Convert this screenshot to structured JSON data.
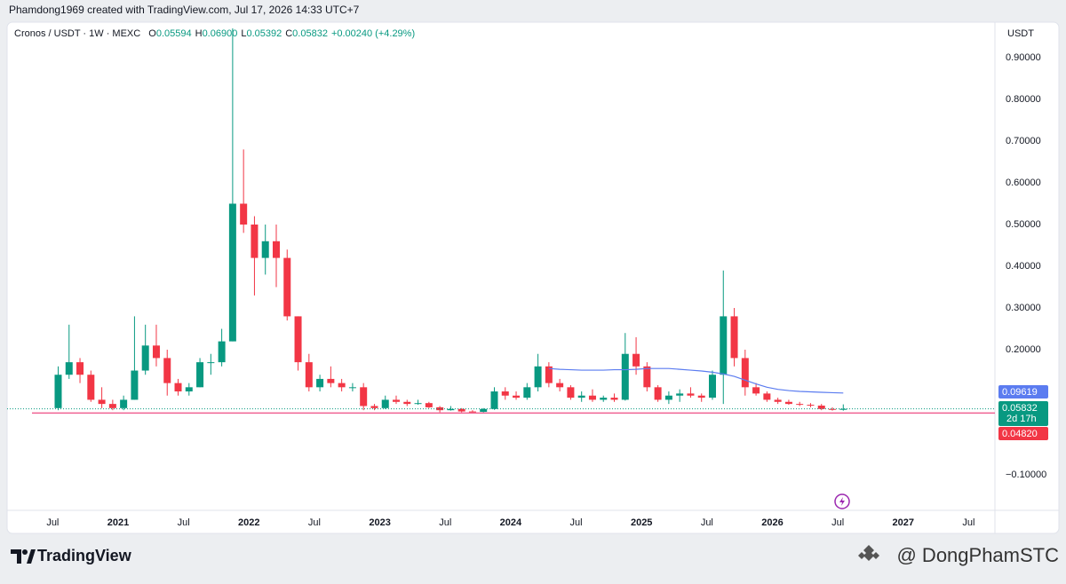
{
  "header": {
    "credit": "Phamdong1969 created with TradingView.com, Jul 17, 2026 14:33 UTC+7"
  },
  "footer": {
    "brand": "TradingView",
    "author": "@ DongPhamSTC"
  },
  "chart_data": {
    "type": "candlestick",
    "symbol": "Cronos / USDT · 1W · MEXC",
    "ohlc_legend": [
      {
        "key": "O",
        "value": "0.05594"
      },
      {
        "key": "H",
        "value": "0.06900"
      },
      {
        "key": "L",
        "value": "0.05392"
      },
      {
        "key": "C",
        "value": "0.05832"
      }
    ],
    "change": "+0.00240 (+4.29%)",
    "currency": "USDT",
    "up_color": "#089981",
    "down_color": "#f23645",
    "candles": {
      "x": [
        "2020-07",
        "2020-08",
        "2020-09",
        "2020-10",
        "2020-11",
        "2020-12",
        "2021-01",
        "2021-02",
        "2021-03",
        "2021-04",
        "2021-05",
        "2021-06",
        "2021-07",
        "2021-08",
        "2021-09",
        "2021-10",
        "2021-11",
        "2021-12",
        "2022-01",
        "2022-02",
        "2022-03",
        "2022-04",
        "2022-05",
        "2022-06",
        "2022-07",
        "2022-08",
        "2022-09",
        "2022-10",
        "2022-11",
        "2022-12",
        "2023-01",
        "2023-02",
        "2023-03",
        "2023-04",
        "2023-05",
        "2023-06",
        "2023-07",
        "2023-08",
        "2023-09",
        "2023-10",
        "2023-11",
        "2023-12",
        "2024-01",
        "2024-02",
        "2024-03",
        "2024-04",
        "2024-05",
        "2024-06",
        "2024-07",
        "2024-08",
        "2024-09",
        "2024-10",
        "2024-11",
        "2024-12",
        "2025-01",
        "2025-02",
        "2025-03",
        "2025-04",
        "2025-05",
        "2025-06",
        "2025-07",
        "2025-08",
        "2025-09",
        "2025-10",
        "2025-11",
        "2025-12",
        "2026-01",
        "2026-02",
        "2026-03",
        "2026-04",
        "2026-05",
        "2026-06",
        "2026-07"
      ],
      "open": [
        0.06,
        0.14,
        0.17,
        0.14,
        0.08,
        0.07,
        0.06,
        0.08,
        0.15,
        0.21,
        0.18,
        0.12,
        0.1,
        0.11,
        0.17,
        0.17,
        0.22,
        0.55,
        0.5,
        0.42,
        0.46,
        0.42,
        0.28,
        0.17,
        0.11,
        0.13,
        0.12,
        0.11,
        0.11,
        0.065,
        0.06,
        0.08,
        0.075,
        0.07,
        0.072,
        0.062,
        0.055,
        0.058,
        0.052,
        0.051,
        0.058,
        0.1,
        0.09,
        0.085,
        0.11,
        0.16,
        0.12,
        0.11,
        0.085,
        0.09,
        0.08,
        0.085,
        0.08,
        0.19,
        0.16,
        0.11,
        0.08,
        0.09,
        0.095,
        0.09,
        0.085,
        0.14,
        0.28,
        0.18,
        0.11,
        0.095,
        0.08,
        0.075,
        0.07,
        0.068,
        0.066,
        0.058,
        0.05594
      ],
      "high": [
        0.16,
        0.26,
        0.18,
        0.15,
        0.11,
        0.08,
        0.09,
        0.28,
        0.26,
        0.26,
        0.2,
        0.13,
        0.12,
        0.18,
        0.19,
        0.25,
        0.97,
        0.68,
        0.52,
        0.5,
        0.5,
        0.44,
        0.28,
        0.19,
        0.14,
        0.16,
        0.13,
        0.12,
        0.12,
        0.07,
        0.09,
        0.09,
        0.08,
        0.08,
        0.075,
        0.065,
        0.065,
        0.06,
        0.055,
        0.06,
        0.11,
        0.11,
        0.1,
        0.12,
        0.19,
        0.17,
        0.13,
        0.115,
        0.1,
        0.105,
        0.09,
        0.095,
        0.24,
        0.23,
        0.17,
        0.115,
        0.1,
        0.105,
        0.11,
        0.095,
        0.15,
        0.39,
        0.3,
        0.2,
        0.12,
        0.1,
        0.085,
        0.08,
        0.075,
        0.072,
        0.07,
        0.062,
        0.069
      ],
      "low": [
        0.055,
        0.13,
        0.12,
        0.075,
        0.06,
        0.055,
        0.055,
        0.08,
        0.14,
        0.16,
        0.09,
        0.09,
        0.09,
        0.11,
        0.14,
        0.16,
        0.22,
        0.48,
        0.33,
        0.38,
        0.35,
        0.27,
        0.15,
        0.1,
        0.1,
        0.11,
        0.1,
        0.1,
        0.055,
        0.055,
        0.058,
        0.07,
        0.065,
        0.068,
        0.06,
        0.05,
        0.054,
        0.05,
        0.05,
        0.05,
        0.056,
        0.08,
        0.08,
        0.08,
        0.1,
        0.11,
        0.1,
        0.08,
        0.075,
        0.075,
        0.075,
        0.075,
        0.078,
        0.14,
        0.1,
        0.075,
        0.07,
        0.075,
        0.085,
        0.075,
        0.08,
        0.07,
        0.16,
        0.09,
        0.09,
        0.075,
        0.07,
        0.068,
        0.065,
        0.062,
        0.055,
        0.054,
        0.05392
      ],
      "close": [
        0.14,
        0.17,
        0.14,
        0.08,
        0.07,
        0.06,
        0.08,
        0.15,
        0.21,
        0.18,
        0.12,
        0.1,
        0.11,
        0.17,
        0.17,
        0.22,
        0.55,
        0.5,
        0.42,
        0.46,
        0.42,
        0.28,
        0.17,
        0.11,
        0.13,
        0.12,
        0.11,
        0.11,
        0.065,
        0.06,
        0.08,
        0.075,
        0.07,
        0.072,
        0.062,
        0.055,
        0.058,
        0.052,
        0.051,
        0.058,
        0.1,
        0.09,
        0.085,
        0.11,
        0.16,
        0.12,
        0.11,
        0.085,
        0.09,
        0.08,
        0.085,
        0.08,
        0.19,
        0.16,
        0.11,
        0.08,
        0.09,
        0.095,
        0.09,
        0.085,
        0.14,
        0.28,
        0.18,
        0.11,
        0.095,
        0.08,
        0.075,
        0.07,
        0.068,
        0.066,
        0.058,
        0.056,
        0.05832
      ]
    },
    "moving_average": {
      "color": "#5b7cf0",
      "x": [
        "2024-04",
        "2024-05",
        "2024-06",
        "2024-07",
        "2024-08",
        "2024-09",
        "2024-10",
        "2024-11",
        "2024-12",
        "2025-01",
        "2025-02",
        "2025-03",
        "2025-04",
        "2025-05",
        "2025-06",
        "2025-07",
        "2025-08",
        "2025-09",
        "2025-10",
        "2025-11",
        "2025-12",
        "2026-01",
        "2026-02",
        "2026-03",
        "2026-04",
        "2026-05",
        "2026-06",
        "2026-07"
      ],
      "values": [
        0.155,
        0.153,
        0.152,
        0.151,
        0.151,
        0.151,
        0.152,
        0.152,
        0.153,
        0.155,
        0.155,
        0.155,
        0.153,
        0.151,
        0.149,
        0.146,
        0.142,
        0.136,
        0.127,
        0.118,
        0.11,
        0.105,
        0.102,
        0.1,
        0.099,
        0.098,
        0.097,
        0.09619
      ]
    },
    "horizontal_line": {
      "value": 0.0482,
      "label": "0.04820",
      "color": "#f06292"
    },
    "countdown": "2d 17h",
    "ylim": [
      -0.185,
      0.985
    ],
    "yticks": [
      {
        "value": -0.1,
        "label": "−0.10000"
      },
      {
        "value": 0.2,
        "label": "0.20000"
      },
      {
        "value": 0.3,
        "label": "0.30000"
      },
      {
        "value": 0.4,
        "label": "0.40000"
      },
      {
        "value": 0.5,
        "label": "0.50000"
      },
      {
        "value": 0.6,
        "label": "0.60000"
      },
      {
        "value": 0.7,
        "label": "0.70000"
      },
      {
        "value": 0.8,
        "label": "0.80000"
      },
      {
        "value": 0.9,
        "label": "0.90000"
      }
    ],
    "xticks": [
      {
        "value": "2020-07",
        "label": "Jul"
      },
      {
        "value": "2021-01",
        "label": "2021"
      },
      {
        "value": "2021-07",
        "label": "Jul"
      },
      {
        "value": "2022-01",
        "label": "2022"
      },
      {
        "value": "2022-07",
        "label": "Jul"
      },
      {
        "value": "2023-01",
        "label": "2023"
      },
      {
        "value": "2023-07",
        "label": "Jul"
      },
      {
        "value": "2024-01",
        "label": "2024"
      },
      {
        "value": "2024-07",
        "label": "Jul"
      },
      {
        "value": "2025-01",
        "label": "2025"
      },
      {
        "value": "2025-07",
        "label": "Jul"
      },
      {
        "value": "2026-01",
        "label": "2026"
      },
      {
        "value": "2026-07",
        "label": "Jul"
      },
      {
        "value": "2027-01",
        "label": "2027"
      },
      {
        "value": "2027-07",
        "label": "Jul"
      }
    ]
  }
}
